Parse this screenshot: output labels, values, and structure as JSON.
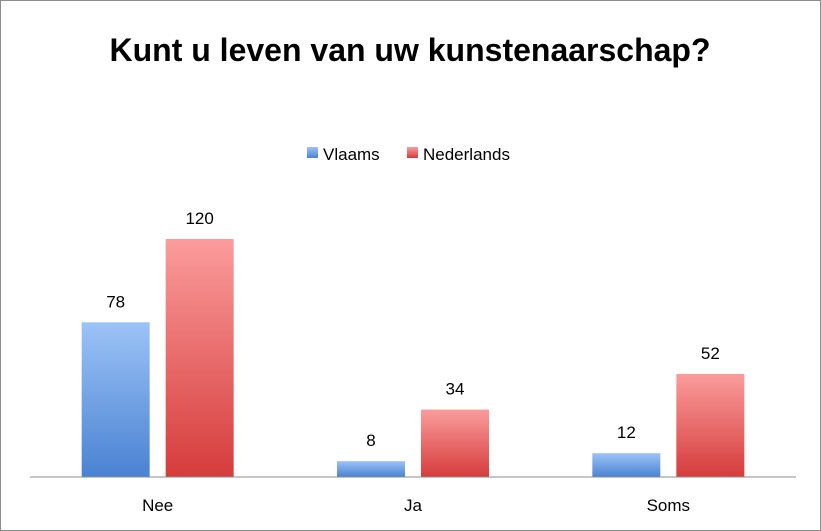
{
  "chart_data": {
    "type": "bar",
    "title": "Kunt u leven van uw kunstenaarschap?",
    "categories": [
      "Nee",
      "Ja",
      "Soms"
    ],
    "series": [
      {
        "name": "Vlaams",
        "values": [
          78,
          8,
          12
        ],
        "color": "#5b8ed6"
      },
      {
        "name": "Nederlands",
        "values": [
          120,
          34,
          52
        ],
        "color": "#e35a5a"
      }
    ],
    "ylim": [
      0,
      120
    ],
    "grid": false,
    "legend_position": "top",
    "data_labels": true
  }
}
